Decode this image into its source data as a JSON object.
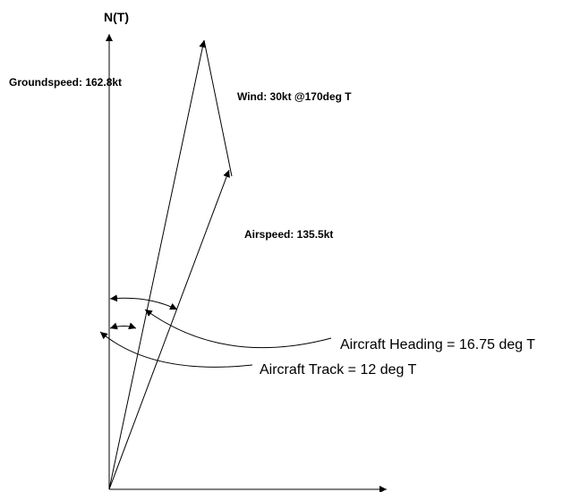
{
  "axis_label": "N(T)",
  "labels": {
    "groundspeed": "Groundspeed: 162.8kt",
    "wind": "Wind: 30kt @170deg T",
    "airspeed": "Airspeed: 135.5kt",
    "heading": "Aircraft Heading = 16.75 deg T",
    "track": "Aircraft Track = 12 deg T"
  }
}
